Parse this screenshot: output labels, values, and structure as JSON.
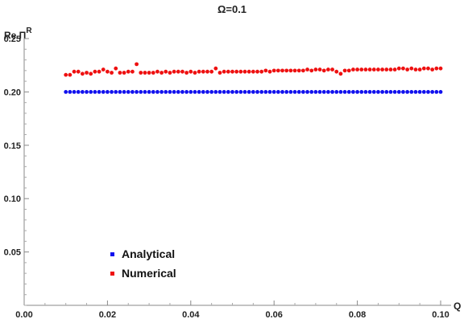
{
  "chart_data": {
    "type": "scatter",
    "title": "Ω=0.1",
    "xlabel": "Q",
    "ylabel": {
      "prefix": "Re Π",
      "superscript": "R"
    },
    "xlim": [
      0,
      0.1
    ],
    "ylim": [
      0,
      0.25
    ],
    "x_ticks": [
      "0.00",
      "0.02",
      "0.04",
      "0.06",
      "0.08",
      "0.10"
    ],
    "y_ticks": [
      "0.05",
      "0.10",
      "0.15",
      "0.20",
      "0.25"
    ],
    "x_tick_values": [
      0,
      0.02,
      0.04,
      0.06,
      0.08,
      0.1
    ],
    "y_tick_values": [
      0.05,
      0.1,
      0.15,
      0.2,
      0.25
    ],
    "grid": false,
    "legend_position": "bottom-left",
    "x": [
      0.01,
      0.011,
      0.012,
      0.013,
      0.014,
      0.015,
      0.016,
      0.017,
      0.018,
      0.019,
      0.02,
      0.021,
      0.022,
      0.023,
      0.024,
      0.025,
      0.026,
      0.027,
      0.028,
      0.029,
      0.03,
      0.031,
      0.032,
      0.033,
      0.034,
      0.035,
      0.036,
      0.037,
      0.038,
      0.039,
      0.04,
      0.041,
      0.042,
      0.043,
      0.044,
      0.045,
      0.046,
      0.047,
      0.048,
      0.049,
      0.05,
      0.051,
      0.052,
      0.053,
      0.054,
      0.055,
      0.056,
      0.057,
      0.058,
      0.059,
      0.06,
      0.061,
      0.062,
      0.063,
      0.064,
      0.065,
      0.066,
      0.067,
      0.068,
      0.069,
      0.07,
      0.071,
      0.072,
      0.073,
      0.074,
      0.075,
      0.076,
      0.077,
      0.078,
      0.079,
      0.08,
      0.081,
      0.082,
      0.083,
      0.084,
      0.085,
      0.086,
      0.087,
      0.088,
      0.089,
      0.09,
      0.091,
      0.092,
      0.093,
      0.094,
      0.095,
      0.096,
      0.097,
      0.098,
      0.099,
      0.1
    ],
    "series": [
      {
        "name": "Analytical",
        "color": "#1010ee",
        "values": [
          0.2,
          0.2,
          0.2,
          0.2,
          0.2,
          0.2,
          0.2,
          0.2,
          0.2,
          0.2,
          0.2,
          0.2,
          0.2,
          0.2,
          0.2,
          0.2,
          0.2,
          0.2,
          0.2,
          0.2,
          0.2,
          0.2,
          0.2,
          0.2,
          0.2,
          0.2,
          0.2,
          0.2,
          0.2,
          0.2,
          0.2,
          0.2,
          0.2,
          0.2,
          0.2,
          0.2,
          0.2,
          0.2,
          0.2,
          0.2,
          0.2,
          0.2,
          0.2,
          0.2,
          0.2,
          0.2,
          0.2,
          0.2,
          0.2,
          0.2,
          0.2,
          0.2,
          0.2,
          0.2,
          0.2,
          0.2,
          0.2,
          0.2,
          0.2,
          0.2,
          0.2,
          0.2,
          0.2,
          0.2,
          0.2,
          0.2,
          0.2,
          0.2,
          0.2,
          0.2,
          0.2,
          0.2,
          0.2,
          0.2,
          0.2,
          0.2,
          0.2,
          0.2,
          0.2,
          0.2,
          0.2,
          0.2,
          0.2,
          0.2,
          0.2,
          0.2,
          0.2,
          0.2,
          0.2,
          0.2,
          0.2
        ]
      },
      {
        "name": "Numerical",
        "color": "#ee1010",
        "values": [
          0.216,
          0.216,
          0.219,
          0.219,
          0.217,
          0.218,
          0.217,
          0.219,
          0.219,
          0.221,
          0.219,
          0.218,
          0.222,
          0.218,
          0.218,
          0.219,
          0.219,
          0.226,
          0.218,
          0.218,
          0.218,
          0.218,
          0.219,
          0.218,
          0.219,
          0.218,
          0.219,
          0.219,
          0.219,
          0.218,
          0.219,
          0.218,
          0.219,
          0.219,
          0.219,
          0.219,
          0.222,
          0.218,
          0.219,
          0.219,
          0.219,
          0.219,
          0.219,
          0.219,
          0.219,
          0.219,
          0.219,
          0.219,
          0.22,
          0.219,
          0.22,
          0.22,
          0.22,
          0.22,
          0.22,
          0.22,
          0.22,
          0.22,
          0.221,
          0.22,
          0.221,
          0.221,
          0.22,
          0.221,
          0.221,
          0.219,
          0.217,
          0.22,
          0.22,
          0.221,
          0.221,
          0.221,
          0.221,
          0.221,
          0.221,
          0.221,
          0.221,
          0.221,
          0.221,
          0.221,
          0.222,
          0.222,
          0.221,
          0.222,
          0.221,
          0.221,
          0.222,
          0.222,
          0.221,
          0.222,
          0.222
        ]
      }
    ]
  }
}
